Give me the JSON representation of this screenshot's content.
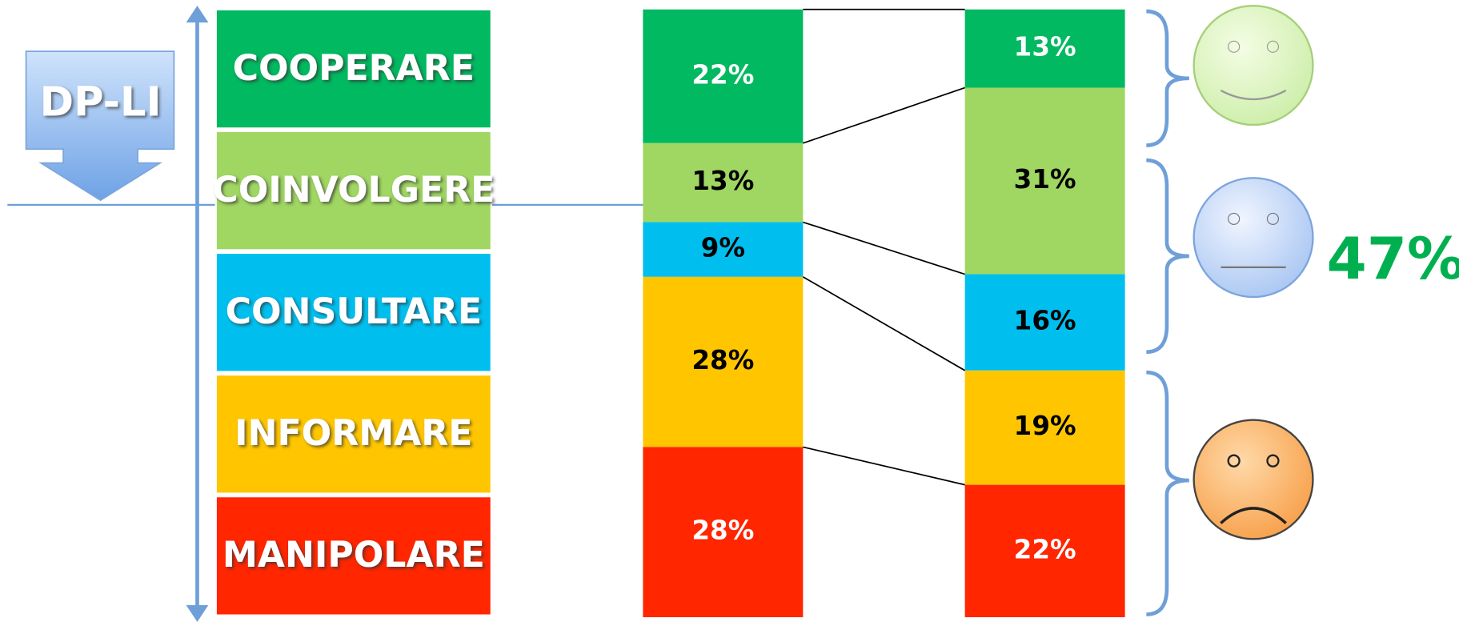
{
  "chart_data": {
    "type": "stacked_bar",
    "categories": [
      null,
      null
    ],
    "series": [
      {
        "name": "COOPERARE",
        "color": "#00b960",
        "values": [
          22,
          13
        ],
        "value_labels": [
          "22%",
          "13%"
        ]
      },
      {
        "name": "COINVOLGERE",
        "color": "#a0d662",
        "values": [
          13,
          31
        ],
        "value_labels": [
          "13%",
          "31%"
        ]
      },
      {
        "name": "CONSULTARE",
        "color": "#00bfef",
        "values": [
          9,
          16
        ],
        "value_labels": [
          "9%",
          "16%"
        ]
      },
      {
        "name": "INFORMARE",
        "color": "#ffc600",
        "values": [
          28,
          19
        ],
        "value_labels": [
          "28%",
          "19%"
        ]
      },
      {
        "name": "MANIPOLARE",
        "color": "#ff2600",
        "values": [
          28,
          22
        ],
        "value_labels": [
          "28%",
          "22%"
        ]
      }
    ],
    "annotations": [
      "DP-LI",
      "47%"
    ]
  }
}
